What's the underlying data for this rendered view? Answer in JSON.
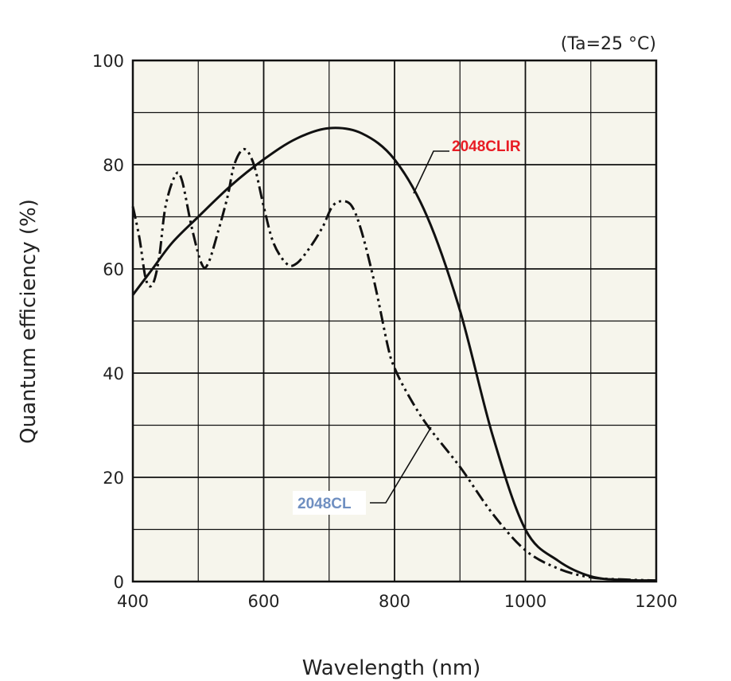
{
  "chart_data": {
    "type": "line",
    "title": "",
    "condition": "(Ta=25 °C)",
    "xlabel": "Wavelength (nm)",
    "ylabel": "Quantum efficiency (%)",
    "xlim": [
      400,
      1200
    ],
    "ylim": [
      0,
      100
    ],
    "x_major_ticks": [
      400,
      600,
      800,
      1000,
      1200
    ],
    "y_major_ticks": [
      0,
      20,
      40,
      60,
      80,
      100
    ],
    "x_grid_step": 100,
    "y_grid_step": 10,
    "grid": true,
    "plot_background": "#f6f5ec",
    "series": [
      {
        "name": "2048CLIR",
        "label_color": "#e81c24",
        "line_style": "solid",
        "points": [
          [
            400,
            55
          ],
          [
            430,
            60
          ],
          [
            460,
            65
          ],
          [
            500,
            70
          ],
          [
            550,
            76
          ],
          [
            600,
            81
          ],
          [
            650,
            85
          ],
          [
            700,
            87
          ],
          [
            750,
            86
          ],
          [
            800,
            81
          ],
          [
            850,
            70
          ],
          [
            900,
            52
          ],
          [
            950,
            28
          ],
          [
            1000,
            10
          ],
          [
            1050,
            4
          ],
          [
            1100,
            1
          ],
          [
            1150,
            0.3
          ],
          [
            1200,
            0.2
          ]
        ]
      },
      {
        "name": "2048CL",
        "label_color": "#6f8fc1",
        "line_style": "dash-dot-dot",
        "points": [
          [
            400,
            72
          ],
          [
            410,
            66
          ],
          [
            420,
            58
          ],
          [
            430,
            57
          ],
          [
            440,
            62
          ],
          [
            450,
            72
          ],
          [
            465,
            78
          ],
          [
            475,
            77
          ],
          [
            490,
            68
          ],
          [
            505,
            61
          ],
          [
            515,
            61
          ],
          [
            530,
            67
          ],
          [
            545,
            74
          ],
          [
            555,
            80
          ],
          [
            570,
            83
          ],
          [
            585,
            80
          ],
          [
            600,
            72
          ],
          [
            615,
            65
          ],
          [
            635,
            61
          ],
          [
            650,
            61
          ],
          [
            670,
            64
          ],
          [
            690,
            68
          ],
          [
            705,
            72
          ],
          [
            720,
            73
          ],
          [
            735,
            72
          ],
          [
            750,
            67
          ],
          [
            770,
            57
          ],
          [
            790,
            45
          ],
          [
            800,
            41
          ],
          [
            820,
            36
          ],
          [
            850,
            30
          ],
          [
            900,
            22
          ],
          [
            950,
            13
          ],
          [
            1000,
            6
          ],
          [
            1050,
            2.5
          ],
          [
            1100,
            0.8
          ],
          [
            1150,
            0.4
          ],
          [
            1200,
            0.2
          ]
        ]
      }
    ]
  }
}
